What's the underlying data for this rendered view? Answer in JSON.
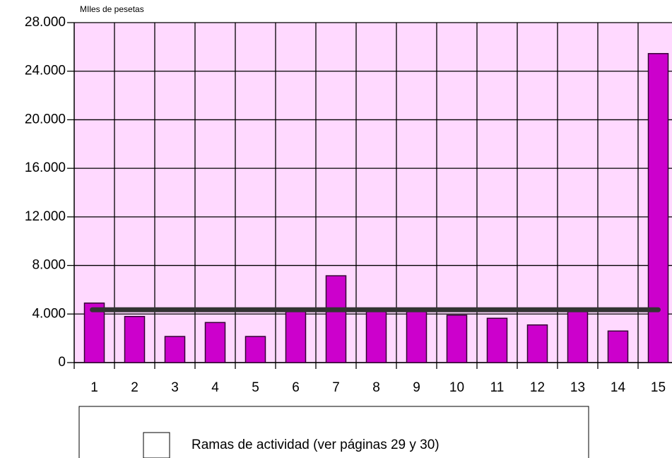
{
  "chart_data": {
    "type": "bar",
    "y_label": "MIles de pesetas",
    "categories": [
      "1",
      "2",
      "3",
      "4",
      "5",
      "6",
      "7",
      "8",
      "9",
      "10",
      "11",
      "12",
      "13",
      "14",
      "15"
    ],
    "series": [
      {
        "name": "Ramas de actividad (ver páginas 29 y 30)",
        "color": "#cc00cc",
        "values": [
          4900,
          3800,
          2150,
          3300,
          2150,
          4350,
          7150,
          4250,
          4250,
          3900,
          3650,
          3100,
          4250,
          2600,
          25450
        ]
      }
    ],
    "average_line": {
      "value": 4350,
      "color": "#333333"
    },
    "ylim": [
      0,
      28000
    ],
    "yticks": [
      0,
      {
        "value": 4000,
        "label": "4.000"
      },
      {
        "value": 8000,
        "label": "8.000"
      },
      {
        "value": 12000,
        "label": "12.000"
      },
      {
        "value": 16000,
        "label": "16.000"
      },
      {
        "value": 20000,
        "label": "20.000"
      },
      {
        "value": 24000,
        "label": "24.000"
      },
      {
        "value": 28000,
        "label": "28.000"
      }
    ],
    "grid": true,
    "background": "#ffd9ff"
  }
}
